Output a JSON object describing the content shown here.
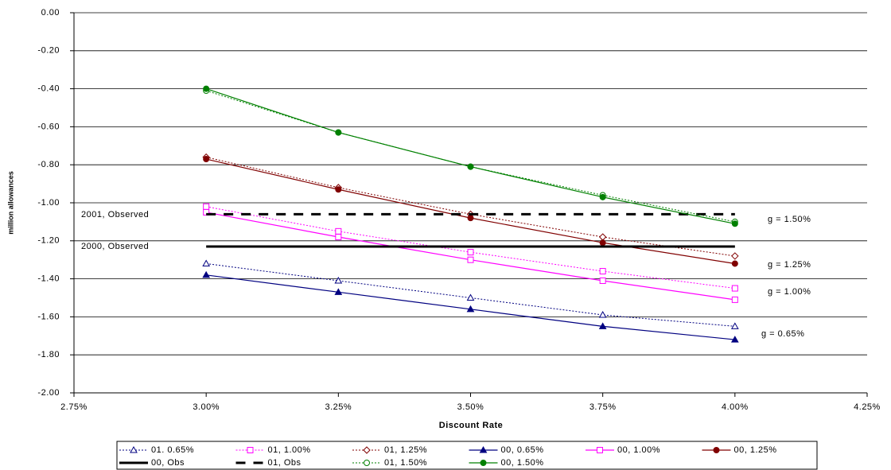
{
  "chart_data": {
    "type": "line",
    "x_label": "Discount Rate",
    "y_label": "million allowances",
    "x": [
      3.0,
      3.25,
      3.5,
      3.75,
      4.0
    ],
    "xlim": [
      2.75,
      4.25
    ],
    "xticks": [
      {
        "value": 2.75,
        "label": "2.75%"
      },
      {
        "value": 3.0,
        "label": "3.00%"
      },
      {
        "value": 3.25,
        "label": "3.25%"
      },
      {
        "value": 3.5,
        "label": "3.50%"
      },
      {
        "value": 3.75,
        "label": "3.75%"
      },
      {
        "value": 4.0,
        "label": "4.00%"
      },
      {
        "value": 4.25,
        "label": "4.25%"
      }
    ],
    "ylim": [
      -2.0,
      0.0
    ],
    "yticks": [
      {
        "value": 0.0,
        "label": "0.00"
      },
      {
        "value": -0.2,
        "label": "-0.20"
      },
      {
        "value": -0.4,
        "label": "-0.40"
      },
      {
        "value": -0.6,
        "label": "-0.60"
      },
      {
        "value": -0.8,
        "label": "-0.80"
      },
      {
        "value": -1.0,
        "label": "-1.00"
      },
      {
        "value": -1.2,
        "label": "-1.20"
      },
      {
        "value": -1.4,
        "label": "-1.40"
      },
      {
        "value": -1.6,
        "label": "-1.60"
      },
      {
        "value": -1.8,
        "label": "-1.80"
      },
      {
        "value": -2.0,
        "label": "-2.00"
      }
    ],
    "grid": true,
    "legend": "bottom",
    "series": [
      {
        "name": "01. 0.65%",
        "color": "#000080",
        "dash": "dotted",
        "marker": "triangle-open",
        "values": [
          -1.32,
          -1.41,
          -1.5,
          -1.59,
          -1.65
        ]
      },
      {
        "name": "01, 1.00%",
        "color": "#ff00ff",
        "dash": "dotted",
        "marker": "square-open",
        "values": [
          -1.02,
          -1.15,
          -1.26,
          -1.36,
          -1.45
        ]
      },
      {
        "name": "01, 1.25%",
        "color": "#800000",
        "dash": "dotted",
        "marker": "diamond-open",
        "values": [
          -0.76,
          -0.92,
          -1.06,
          -1.18,
          -1.28
        ]
      },
      {
        "name": "00, 0.65%",
        "color": "#000080",
        "dash": "solid",
        "marker": "triangle",
        "values": [
          -1.38,
          -1.47,
          -1.56,
          -1.65,
          -1.72
        ]
      },
      {
        "name": "00, 1.00%",
        "color": "#ff00ff",
        "dash": "solid",
        "marker": "square-open",
        "values": [
          -1.05,
          -1.18,
          -1.3,
          -1.41,
          -1.51
        ]
      },
      {
        "name": "00, 1.25%",
        "color": "#800000",
        "dash": "solid",
        "marker": "circle",
        "values": [
          -0.77,
          -0.93,
          -1.08,
          -1.21,
          -1.32
        ]
      },
      {
        "name": "00, Obs",
        "color": "#000000",
        "dash": "solid-thick",
        "marker": "none",
        "values": [
          -1.23,
          -1.23,
          -1.23,
          -1.23,
          -1.23
        ]
      },
      {
        "name": "01, Obs",
        "color": "#000000",
        "dash": "dashed-thick",
        "marker": "none",
        "values": [
          -1.06,
          -1.06,
          -1.06,
          -1.06,
          -1.06
        ]
      },
      {
        "name": "01, 1.50%",
        "color": "#008000",
        "dash": "dotted",
        "marker": "circle-open",
        "values": [
          -0.41,
          -0.63,
          -0.81,
          -0.96,
          -1.1
        ]
      },
      {
        "name": "00, 1.50%",
        "color": "#008000",
        "dash": "solid",
        "marker": "circle",
        "values": [
          -0.4,
          -0.63,
          -0.81,
          -0.97,
          -1.11
        ]
      }
    ],
    "annotations": [
      "2001, Observed",
      "2000, Observed",
      "g = 1.50%",
      "g = 1.25%",
      "g = 1.00%",
      "g = 0.65%"
    ]
  }
}
